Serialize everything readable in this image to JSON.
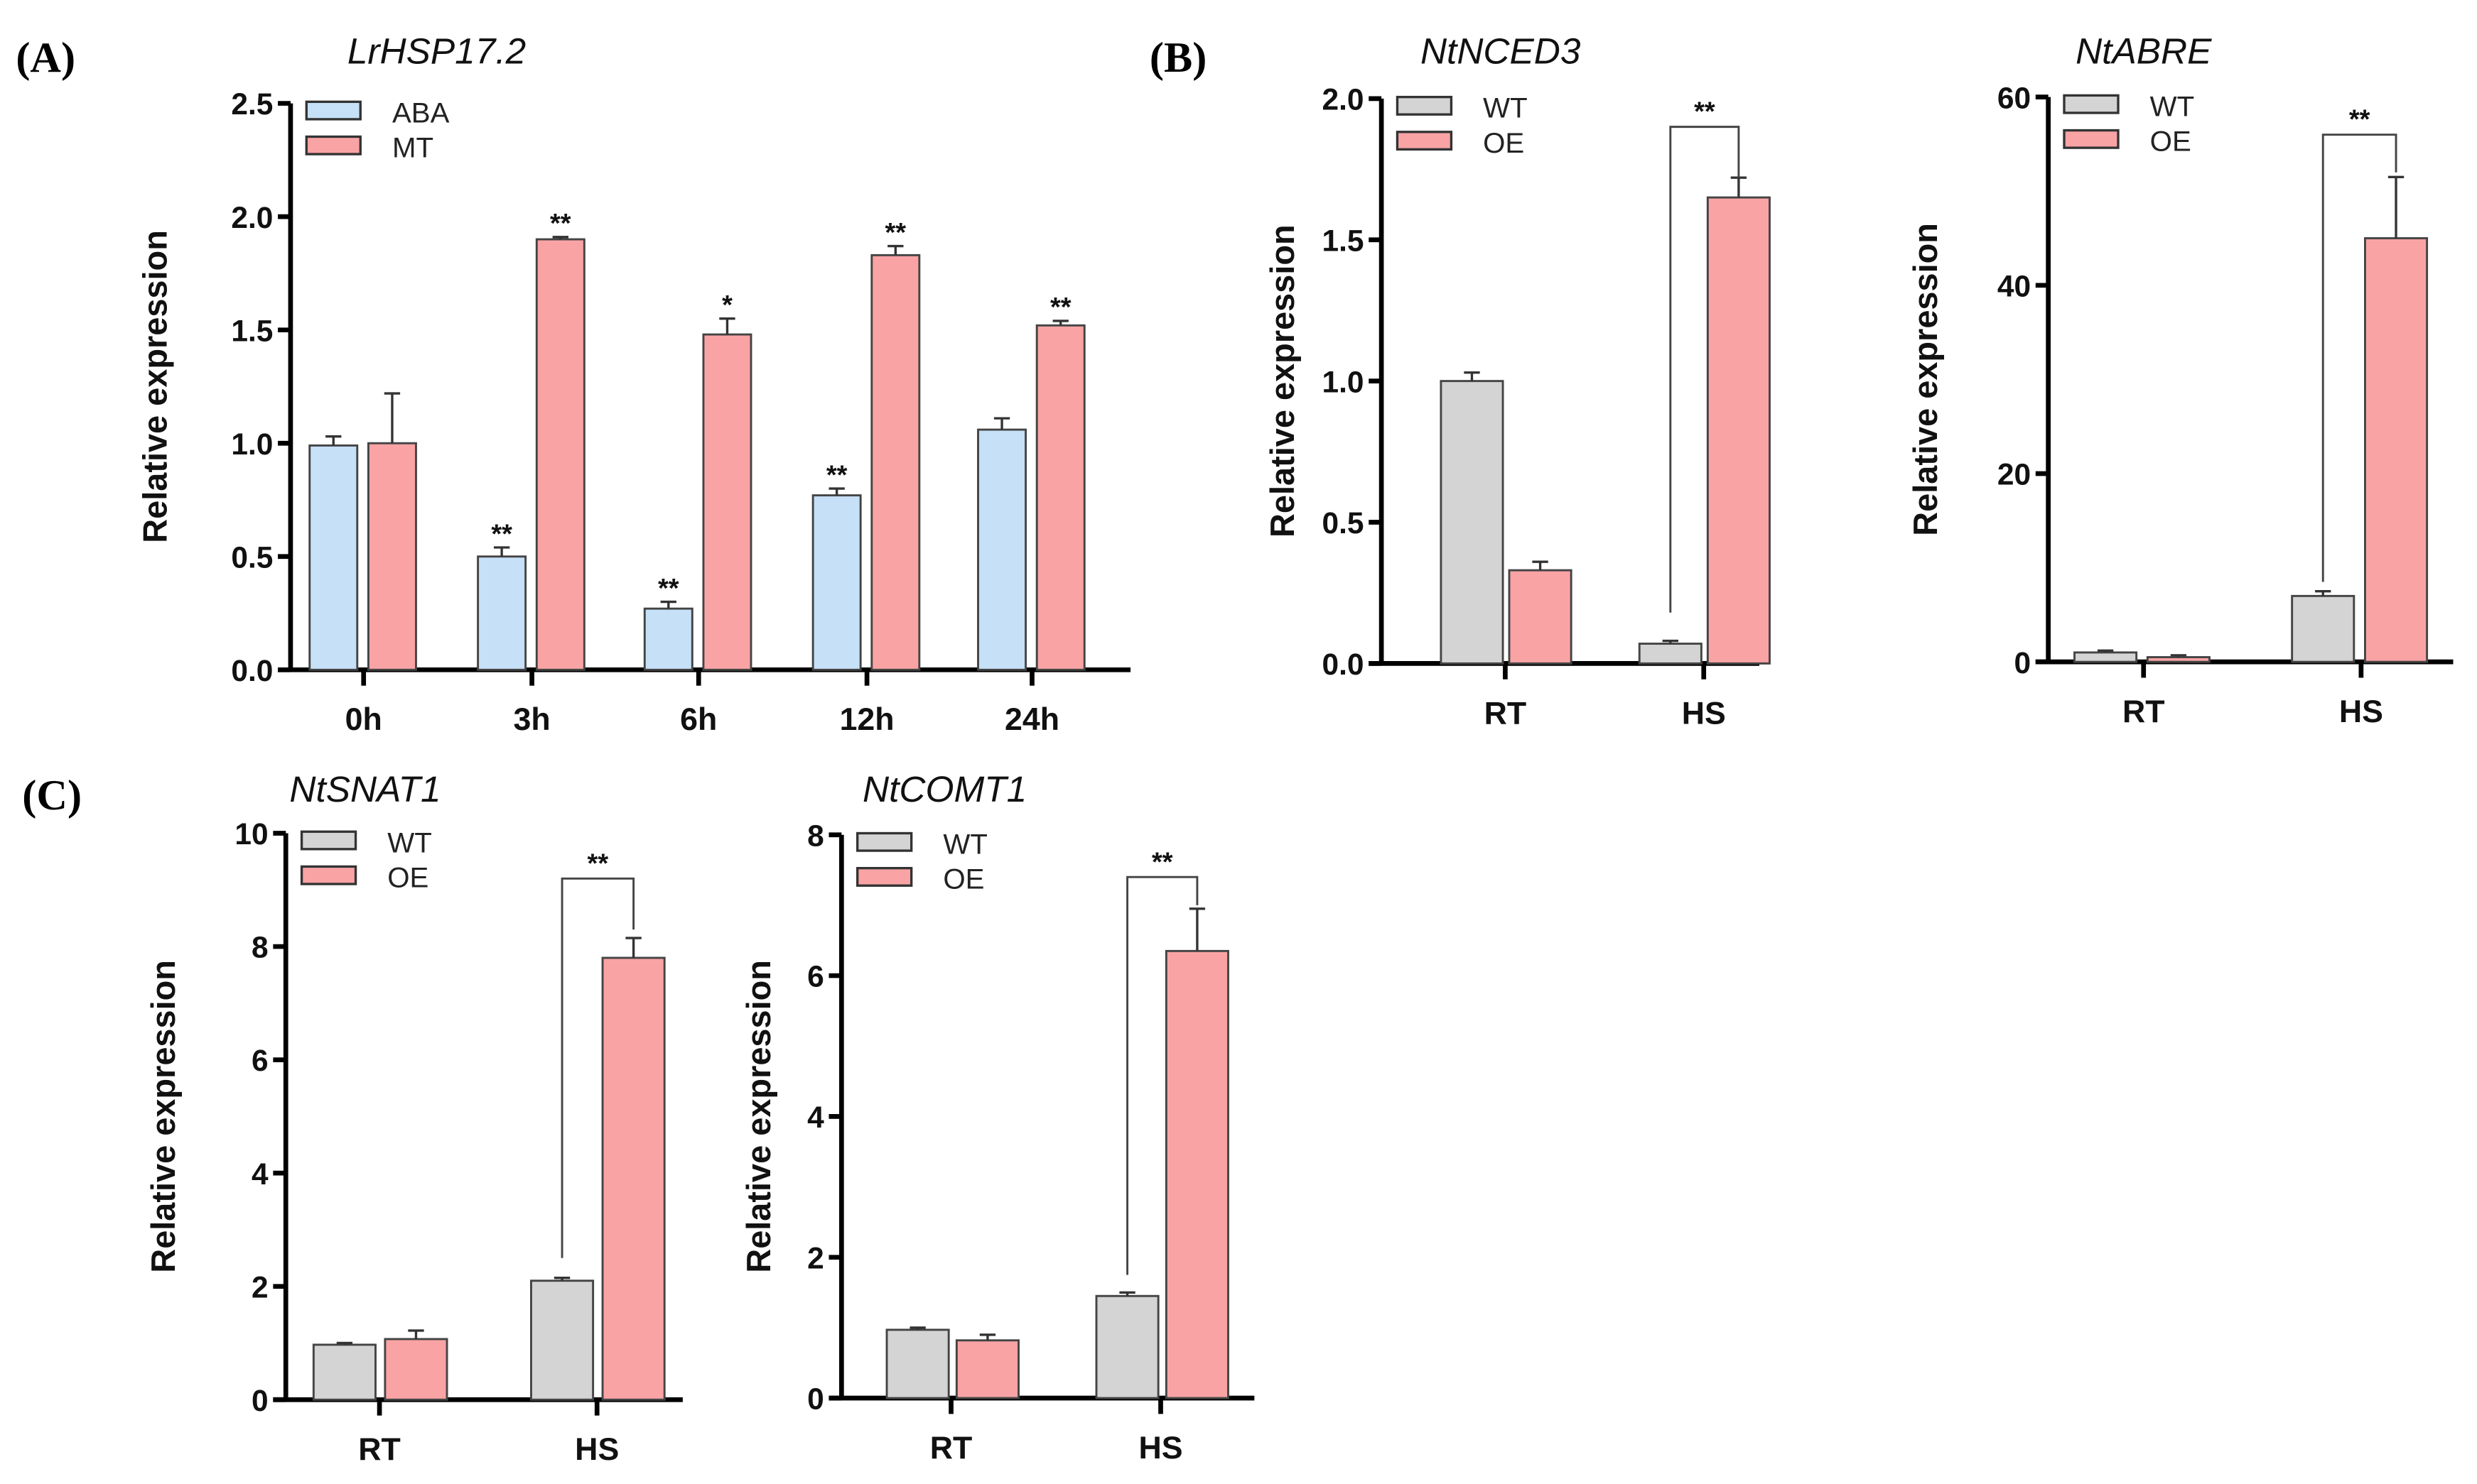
{
  "panels": [
    "(A)",
    "(B)",
    "(C)"
  ],
  "colors": {
    "ABA": "#c6e0f7",
    "MT": "#f9a3a5",
    "WT": "#d4d4d4",
    "OE": "#f9a3a5",
    "stroke": "#333333"
  },
  "chart_data": [
    {
      "type": "bar",
      "title": "LrHSP17.2",
      "ylabel": "Relative expression",
      "xlabel": "",
      "ylim": [
        0,
        2.5
      ],
      "yticks": [
        0,
        0.5,
        1.0,
        1.5,
        2.0,
        2.5
      ],
      "ytick_labels": [
        "0.0",
        "0.5",
        "1.0",
        "1.5",
        "2.0",
        "2.5"
      ],
      "categories": [
        "0h",
        "3h",
        "6h",
        "12h",
        "24h"
      ],
      "legend": "top-left",
      "series": [
        {
          "name": "ABA",
          "values": [
            0.99,
            0.5,
            0.27,
            0.77,
            1.06
          ],
          "errors": [
            0.04,
            0.04,
            0.03,
            0.03,
            0.05
          ],
          "sig": [
            "",
            "**",
            "**",
            "**",
            ""
          ]
        },
        {
          "name": "MT",
          "values": [
            1.0,
            1.9,
            1.48,
            1.83,
            1.52
          ],
          "errors": [
            0.22,
            0.01,
            0.07,
            0.04,
            0.02
          ],
          "sig": [
            "",
            "**",
            "*",
            "**",
            "**"
          ]
        }
      ],
      "brackets": []
    },
    {
      "type": "bar",
      "title": "NtNCED3",
      "ylabel": "Relative expression",
      "xlabel": "",
      "ylim": [
        0,
        2.0
      ],
      "yticks": [
        0,
        0.5,
        1.0,
        1.5,
        2.0
      ],
      "ytick_labels": [
        "0.0",
        "0.5",
        "1.0",
        "1.5",
        "2.0"
      ],
      "categories": [
        "RT",
        "HS"
      ],
      "legend": "top-left",
      "series": [
        {
          "name": "WT",
          "values": [
            1.0,
            0.07
          ],
          "errors": [
            0.03,
            0.01
          ],
          "sig": [
            "",
            ""
          ]
        },
        {
          "name": "OE",
          "values": [
            0.33,
            1.65
          ],
          "errors": [
            0.03,
            0.07
          ],
          "sig": [
            "",
            ""
          ]
        }
      ],
      "brackets": [
        {
          "category": 1,
          "level": 1.9,
          "label": "**",
          "left_bottom": 0.18,
          "right_bottom": 1.72
        }
      ]
    },
    {
      "type": "bar",
      "title": "NtABRE",
      "ylabel": "Relative expression",
      "xlabel": "",
      "ylim": [
        0,
        60
      ],
      "yticks": [
        0,
        20,
        40,
        60
      ],
      "ytick_labels": [
        "0",
        "20",
        "40",
        "60"
      ],
      "categories": [
        "RT",
        "HS"
      ],
      "legend": "top-left",
      "series": [
        {
          "name": "WT",
          "values": [
            1.0,
            7.0
          ],
          "errors": [
            0.2,
            0.5
          ],
          "sig": [
            "",
            ""
          ]
        },
        {
          "name": "OE",
          "values": [
            0.5,
            45.0
          ],
          "errors": [
            0.2,
            6.5
          ],
          "sig": [
            "",
            ""
          ]
        }
      ],
      "brackets": [
        {
          "category": 1,
          "level": 56,
          "label": "**",
          "left_bottom": 8.5,
          "right_bottom": 52
        }
      ]
    },
    {
      "type": "bar",
      "title": "NtSNAT1",
      "ylabel": "Relative expression",
      "xlabel": "",
      "ylim": [
        0,
        10
      ],
      "yticks": [
        0,
        2,
        4,
        6,
        8,
        10
      ],
      "ytick_labels": [
        "0",
        "2",
        "4",
        "6",
        "8",
        "10"
      ],
      "categories": [
        "RT",
        "HS"
      ],
      "legend": "top-left",
      "series": [
        {
          "name": "WT",
          "values": [
            0.97,
            2.1
          ],
          "errors": [
            0.03,
            0.05
          ],
          "sig": [
            "",
            ""
          ]
        },
        {
          "name": "OE",
          "values": [
            1.07,
            7.8
          ],
          "errors": [
            0.15,
            0.35
          ],
          "sig": [
            "",
            ""
          ]
        }
      ],
      "brackets": [
        {
          "category": 1,
          "level": 9.2,
          "label": "**",
          "left_bottom": 2.5,
          "right_bottom": 8.3
        }
      ]
    },
    {
      "type": "bar",
      "title": "NtCOMT1",
      "ylabel": "Relative expression",
      "xlabel": "",
      "ylim": [
        0,
        8
      ],
      "yticks": [
        0,
        2,
        4,
        6,
        8
      ],
      "ytick_labels": [
        "0",
        "2",
        "4",
        "6",
        "8"
      ],
      "categories": [
        "RT",
        "HS"
      ],
      "legend": "top-left",
      "series": [
        {
          "name": "WT",
          "values": [
            0.97,
            1.45
          ],
          "errors": [
            0.03,
            0.05
          ],
          "sig": [
            "",
            ""
          ]
        },
        {
          "name": "OE",
          "values": [
            0.82,
            6.35
          ],
          "errors": [
            0.08,
            0.6
          ],
          "sig": [
            "",
            ""
          ]
        }
      ],
      "brackets": [
        {
          "category": 1,
          "level": 7.4,
          "label": "**",
          "left_bottom": 1.75,
          "right_bottom": 7.0
        }
      ]
    }
  ]
}
